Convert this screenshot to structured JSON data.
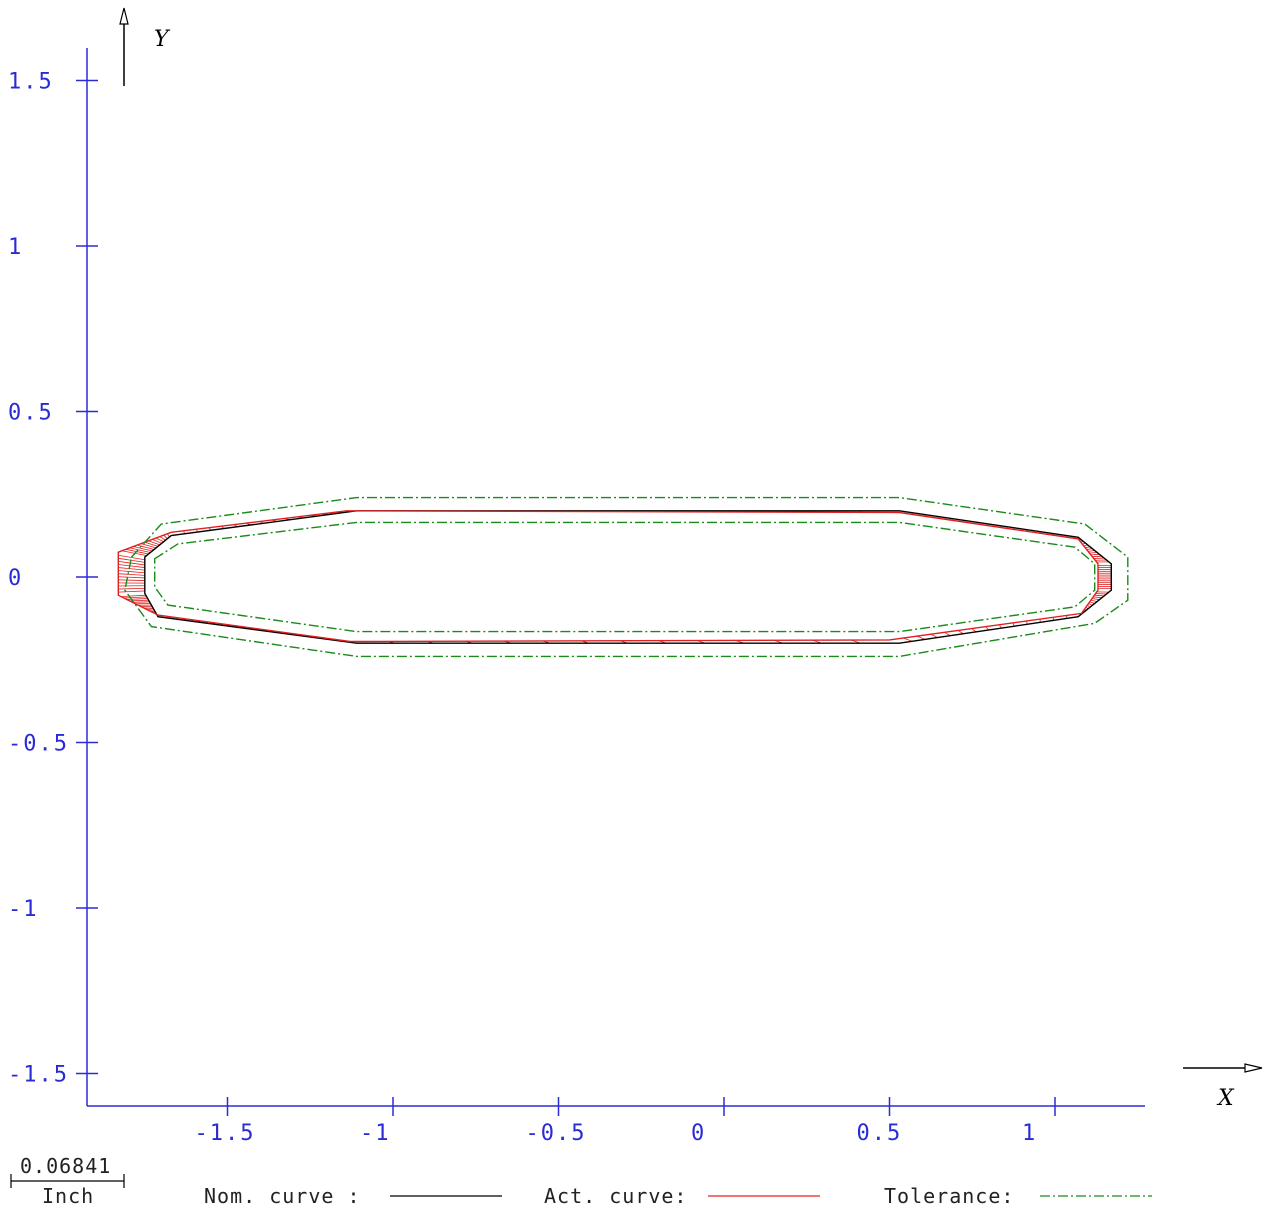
{
  "chart_data": {
    "type": "line",
    "xlabel": "X",
    "ylabel": "Y",
    "xlim": [
      -1.92,
      1.27
    ],
    "ylim": [
      -1.59,
      1.59
    ],
    "x_ticks": [
      -1.5,
      -1,
      -0.5,
      0,
      0.5,
      1
    ],
    "x_tick_labels": [
      "-1.5",
      "-1",
      "-0.5",
      "0",
      "0.5",
      "1"
    ],
    "y_ticks": [
      1.5,
      1,
      0.5,
      0,
      -0.5,
      -1,
      -1.5
    ],
    "y_tick_labels": [
      "1.5",
      "1",
      "0.5",
      "0",
      "-0.5",
      "-1",
      "-1.5"
    ],
    "scale_bar": {
      "value": "0.06841",
      "unit": "Inch"
    },
    "legend": [
      {
        "label": "Nom. curve :",
        "color": "#000000",
        "style": "solid"
      },
      {
        "label": "Act. curve:",
        "color": "#e02020",
        "style": "solid"
      },
      {
        "label": "Tolerance:",
        "color": "#1a8a1a",
        "style": "dashdot"
      }
    ],
    "series": [
      {
        "name": "Nom. curve :",
        "color": "#000000",
        "style": "solid",
        "closed": true,
        "points": [
          [
            -1.75,
            0.06
          ],
          [
            -1.67,
            0.125
          ],
          [
            -1.11,
            0.2
          ],
          [
            0.53,
            0.2
          ],
          [
            1.07,
            0.12
          ],
          [
            1.17,
            0.04
          ],
          [
            1.17,
            -0.04
          ],
          [
            1.07,
            -0.12
          ],
          [
            0.53,
            -0.2
          ],
          [
            -1.11,
            -0.2
          ],
          [
            -1.71,
            -0.12
          ],
          [
            -1.75,
            -0.05
          ]
        ]
      },
      {
        "name": "Act. curve:",
        "color": "#e02020",
        "style": "solid",
        "closed": true,
        "points": [
          [
            -1.83,
            0.075
          ],
          [
            -1.67,
            0.135
          ],
          [
            -1.14,
            0.2
          ],
          [
            0.53,
            0.195
          ],
          [
            1.07,
            0.115
          ],
          [
            1.13,
            0.04
          ],
          [
            1.13,
            -0.04
          ],
          [
            1.08,
            -0.11
          ],
          [
            0.5,
            -0.19
          ],
          [
            -1.13,
            -0.195
          ],
          [
            -1.71,
            -0.115
          ],
          [
            -1.83,
            -0.055
          ]
        ]
      },
      {
        "name": "Tolerance:",
        "color": "#1a8a1a",
        "style": "dashdot",
        "closed": true,
        "points": [
          [
            -1.79,
            0.06
          ],
          [
            -1.7,
            0.16
          ],
          [
            -1.11,
            0.24
          ],
          [
            0.53,
            0.24
          ],
          [
            1.09,
            0.16
          ],
          [
            1.22,
            0.06
          ],
          [
            1.22,
            -0.07
          ],
          [
            1.12,
            -0.14
          ],
          [
            0.53,
            -0.24
          ],
          [
            -1.11,
            -0.24
          ],
          [
            -1.73,
            -0.15
          ],
          [
            -1.81,
            -0.04
          ]
        ]
      },
      {
        "name": "",
        "color": "#1a8a1a",
        "style": "dashdot",
        "closed": true,
        "points": [
          [
            -1.72,
            0.055
          ],
          [
            -1.65,
            0.1
          ],
          [
            -1.11,
            0.165
          ],
          [
            0.53,
            0.165
          ],
          [
            1.06,
            0.09
          ],
          [
            1.12,
            0.04
          ],
          [
            1.12,
            -0.04
          ],
          [
            1.06,
            -0.09
          ],
          [
            0.53,
            -0.165
          ],
          [
            -1.11,
            -0.165
          ],
          [
            -1.68,
            -0.085
          ],
          [
            -1.72,
            -0.03
          ]
        ]
      }
    ]
  }
}
